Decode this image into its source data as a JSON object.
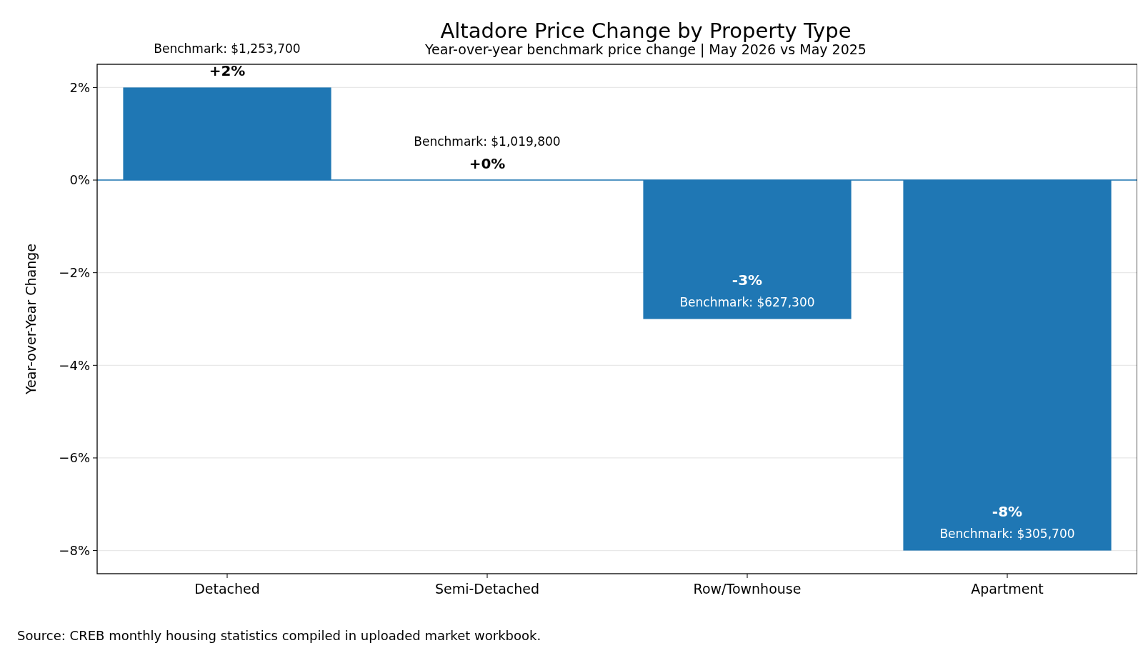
{
  "chart_data": {
    "type": "bar",
    "title": "Altadore Price Change by Property Type",
    "subtitle": "Year-over-year benchmark price change | May 2026 vs May 2025",
    "ylabel": "Year-over-Year Change",
    "categories": [
      "Detached",
      "Semi-Detached",
      "Row/Townhouse",
      "Apartment"
    ],
    "values": [
      2,
      0,
      -3,
      -8
    ],
    "value_labels": [
      "+2%",
      "+0%",
      "-3%",
      "-8%"
    ],
    "color": "#1f77b4",
    "ylim": [
      -8.5,
      2.5
    ],
    "yticks": [
      {
        "value": -8,
        "label": "−8%"
      },
      {
        "value": -6,
        "label": "−6%"
      },
      {
        "value": -4,
        "label": "−4%"
      },
      {
        "value": -2,
        "label": "−2%"
      },
      {
        "value": 0,
        "label": "0%"
      },
      {
        "value": 2,
        "label": "2%"
      }
    ],
    "grid": "y",
    "ref_lines": [
      {
        "axis": "y",
        "value": 0,
        "color": "#1f77b4"
      }
    ],
    "annotations": [
      {
        "text": "Benchmark: $1,253,700",
        "x": "Detached",
        "y": 2
      },
      {
        "text": "Benchmark: $1,019,800",
        "x": "Semi-Detached",
        "y": 0
      },
      {
        "text": "Benchmark: $627,300",
        "x": "Row/Townhouse",
        "y": -3
      },
      {
        "text": "Benchmark: $305,700",
        "x": "Apartment",
        "y": -8
      },
      "Source: CREB monthly housing statistics compiled in uploaded market workbook."
    ]
  }
}
